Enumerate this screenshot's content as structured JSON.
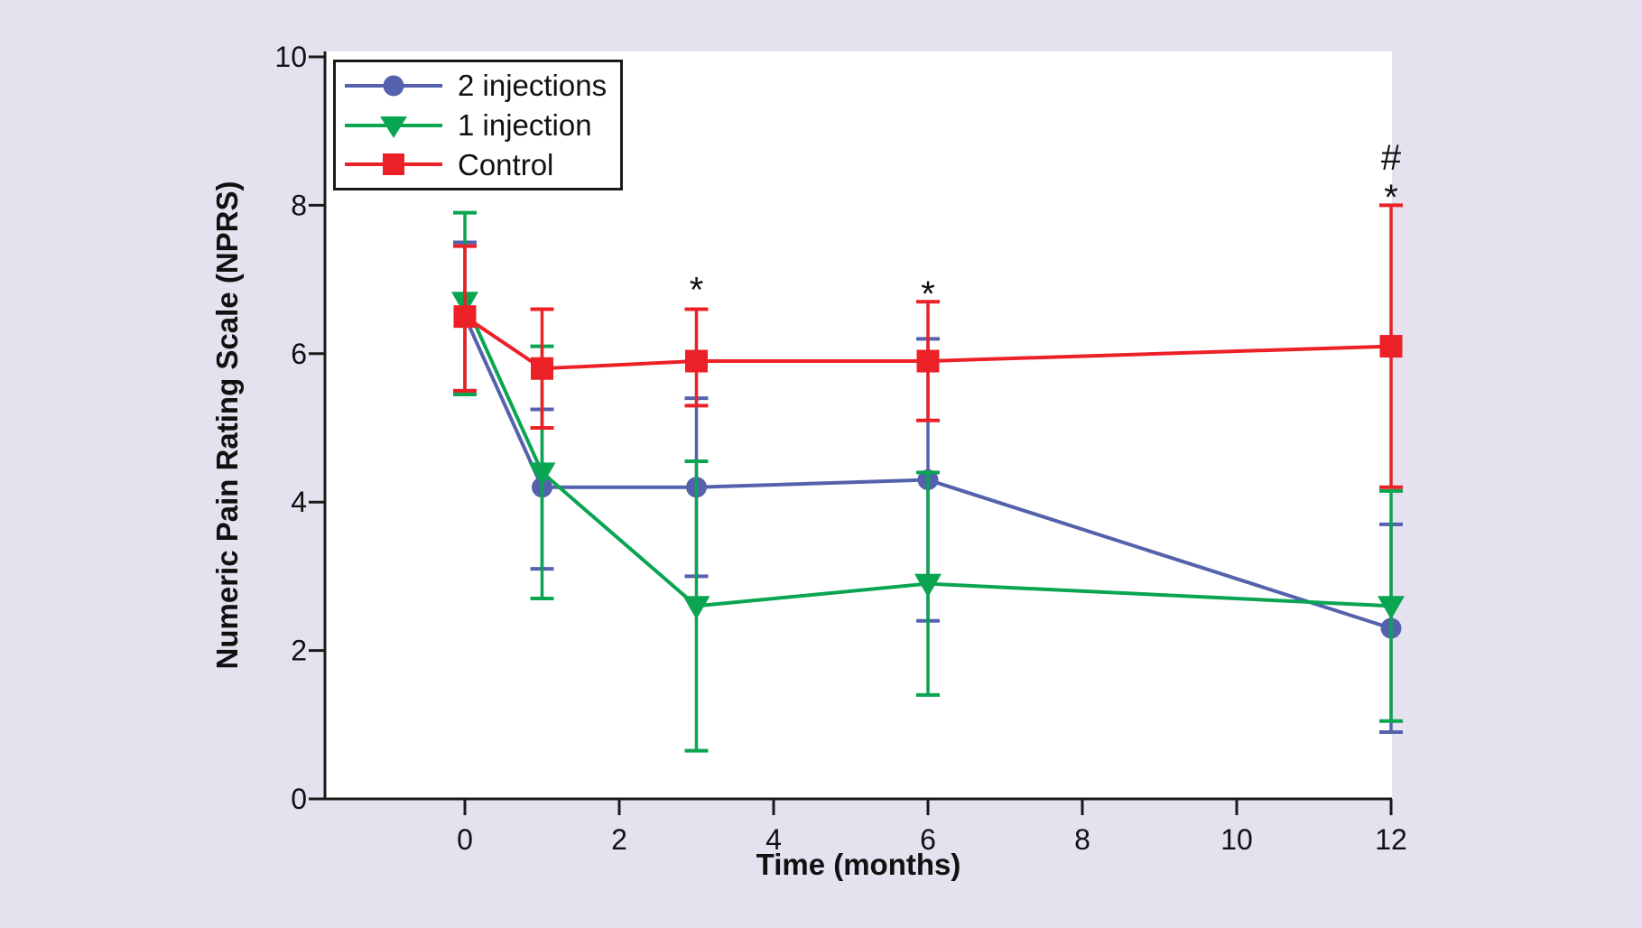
{
  "figure": {
    "background_color": "#E5E1EF",
    "plot_background_color": "#FFFFFF",
    "axis_color": "#1A1A1A",
    "text_color": "#111111"
  },
  "axes": {
    "x_label": "Time (months)",
    "y_label": "Numeric Pain Rating Scale (NPRS)",
    "x_ticks": [
      "0",
      "2",
      "4",
      "6",
      "8",
      "10",
      "12"
    ],
    "y_ticks": [
      "0",
      "2",
      "4",
      "6",
      "8",
      "10"
    ]
  },
  "legend": {
    "items": [
      {
        "label": "2 injections",
        "marker": "circle",
        "color": "#5462AD"
      },
      {
        "label": "1 injection",
        "marker": "triangle-down",
        "color": "#0AA551"
      },
      {
        "label": "Control",
        "marker": "square",
        "color": "#EC2027"
      }
    ]
  },
  "chart_data": {
    "type": "line",
    "title": "",
    "xlabel": "Time (months)",
    "ylabel": "Numeric Pain Rating Scale (NPRS)",
    "x": [
      0,
      1,
      3,
      6,
      12
    ],
    "xlim": [
      -1.8,
      12
    ],
    "ylim": [
      0,
      10
    ],
    "x_tick_values": [
      0,
      2,
      4,
      6,
      8,
      10,
      12
    ],
    "y_tick_values": [
      0,
      2,
      4,
      6,
      8,
      10
    ],
    "grid": false,
    "error_bars": true,
    "legend_position": "top-left",
    "series": [
      {
        "name": "2 injections",
        "marker": "circle",
        "color": "#5462AD",
        "values": [
          6.5,
          4.2,
          4.2,
          4.3,
          2.3
        ],
        "err_low": [
          5.5,
          3.1,
          3.0,
          2.4,
          0.9
        ],
        "err_high": [
          7.5,
          5.25,
          5.4,
          6.2,
          3.7
        ]
      },
      {
        "name": "1 injection",
        "marker": "triangle-down",
        "color": "#0AA551",
        "values": [
          6.7,
          4.4,
          2.6,
          2.9,
          2.6
        ],
        "err_low": [
          5.45,
          2.7,
          0.65,
          1.4,
          1.05
        ],
        "err_high": [
          7.9,
          6.1,
          4.55,
          4.4,
          4.15
        ]
      },
      {
        "name": "Control",
        "marker": "square",
        "color": "#EC2027",
        "values": [
          6.5,
          5.8,
          5.9,
          5.9,
          6.1
        ],
        "err_low": [
          5.5,
          5.0,
          5.3,
          5.1,
          4.2
        ],
        "err_high": [
          7.45,
          6.6,
          6.6,
          6.7,
          8.0
        ]
      }
    ],
    "annotations": [
      {
        "text": "*",
        "x": 3,
        "y": 6.95
      },
      {
        "text": "*",
        "x": 6,
        "y": 6.9
      },
      {
        "text": "#",
        "x": 12,
        "y": 8.65
      },
      {
        "text": "*",
        "x": 12,
        "y": 8.2
      }
    ]
  }
}
